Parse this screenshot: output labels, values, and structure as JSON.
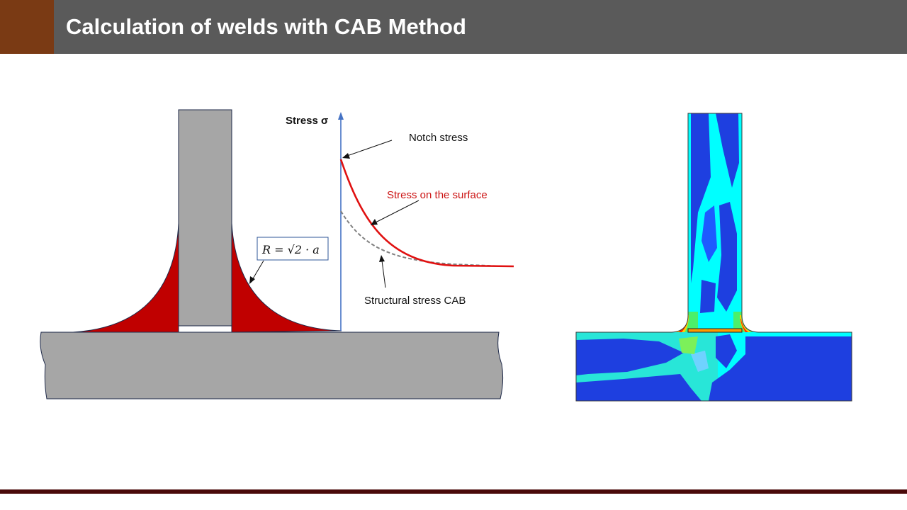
{
  "header": {
    "title": "Calculation of welds with CAB Method"
  },
  "diagram": {
    "axis_label": "Stress σ",
    "annotations": {
      "notch_stress": "Notch stress",
      "surface_stress": "Stress on the surface",
      "structural_stress": "Structural stress CAB"
    },
    "formula": "R = √2 · a"
  },
  "colors": {
    "accent": "#7a3a14",
    "header": "#5a5a5a",
    "weld": "#c00000",
    "plate": "#a6a6a6",
    "axis": "#4472c4",
    "surface_curve": "#e01010",
    "structural_curve": "#808080"
  }
}
